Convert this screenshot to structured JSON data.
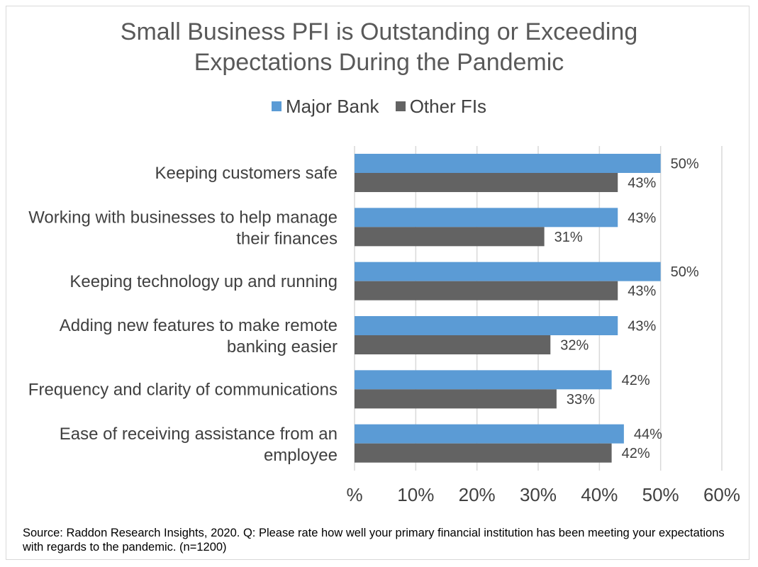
{
  "chart_data": {
    "type": "bar",
    "orientation": "horizontal",
    "title": "Small Business PFI is Outstanding or Exceeding\nExpectations During the Pandemic",
    "categories": [
      "Keeping customers safe",
      "Working with businesses to help manage their finances",
      "Keeping technology up and running",
      "Adding new features to make remote banking easier",
      "Frequency and clarity of communications",
      "Ease of receiving assistance from an employee"
    ],
    "series": [
      {
        "name": "Major Bank",
        "color": "#5b9bd5",
        "values": [
          50,
          43,
          50,
          43,
          42,
          44
        ],
        "labels": [
          "50%",
          "43%",
          "50%",
          "43%",
          "42%",
          "44%"
        ]
      },
      {
        "name": "Other FIs",
        "color": "#636363",
        "values": [
          43,
          31,
          43,
          32,
          33,
          42
        ],
        "labels": [
          "43%",
          "31%",
          "43%",
          "32%",
          "33%",
          "42%"
        ]
      }
    ],
    "xlim": [
      0,
      60
    ],
    "xticks": [
      0,
      10,
      20,
      30,
      40,
      50,
      60
    ],
    "xtick_labels": [
      "%",
      "10%",
      "20%",
      "30%",
      "40%",
      "50%",
      "60%"
    ],
    "xlabel": "",
    "ylabel": "",
    "grid": "vertical",
    "legend_position": "top"
  },
  "source_note": "Source: Raddon Research Insights, 2020. Q: Please rate how well your primary financial institution has been meeting your expectations with regards to the pandemic. (n=1200)"
}
